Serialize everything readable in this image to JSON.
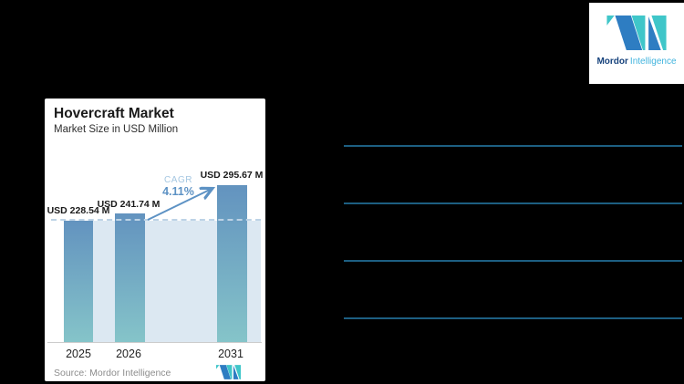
{
  "canvas": {
    "background": "#000000"
  },
  "brand": {
    "name_bold": "Mordor",
    "name_light": "Intelligence",
    "mark_icon": "mordor-intelligence-logo-mark",
    "navy": "#16427c",
    "light_blue": "#41b4de",
    "mark_blue": "#2e7dc2",
    "mark_teal": "#3fc6c9"
  },
  "card": {
    "title": "Hovercraft Market",
    "subtitle": "Market Size in USD Million",
    "source": "Source: Mordor Intelligence"
  },
  "chart_data": {
    "type": "bar",
    "title": "Hovercraft Market",
    "ylabel": "Market Size in USD Million",
    "categories": [
      "2025",
      "2026",
      "2031"
    ],
    "values": [
      228.54,
      241.74,
      295.67
    ],
    "value_labels": [
      "USD 228.54 M",
      "USD 241.74 M",
      "USD 295.67 M"
    ],
    "unit": "USD Million",
    "cagr": {
      "label": "CAGR",
      "value": "4.11%"
    },
    "dashed_reference": 228.54,
    "ylim": [
      0,
      310
    ],
    "grid": false,
    "bar_color_top": "#6393bf",
    "bar_color_bottom": "#85c4c9",
    "plot_bg": "#dce8f2",
    "arrow_color": "#5d92c4",
    "dash_color": "#bdd3e6"
  },
  "right_panel": {
    "divider_color": "#1d5f82",
    "divider_count": 4
  }
}
